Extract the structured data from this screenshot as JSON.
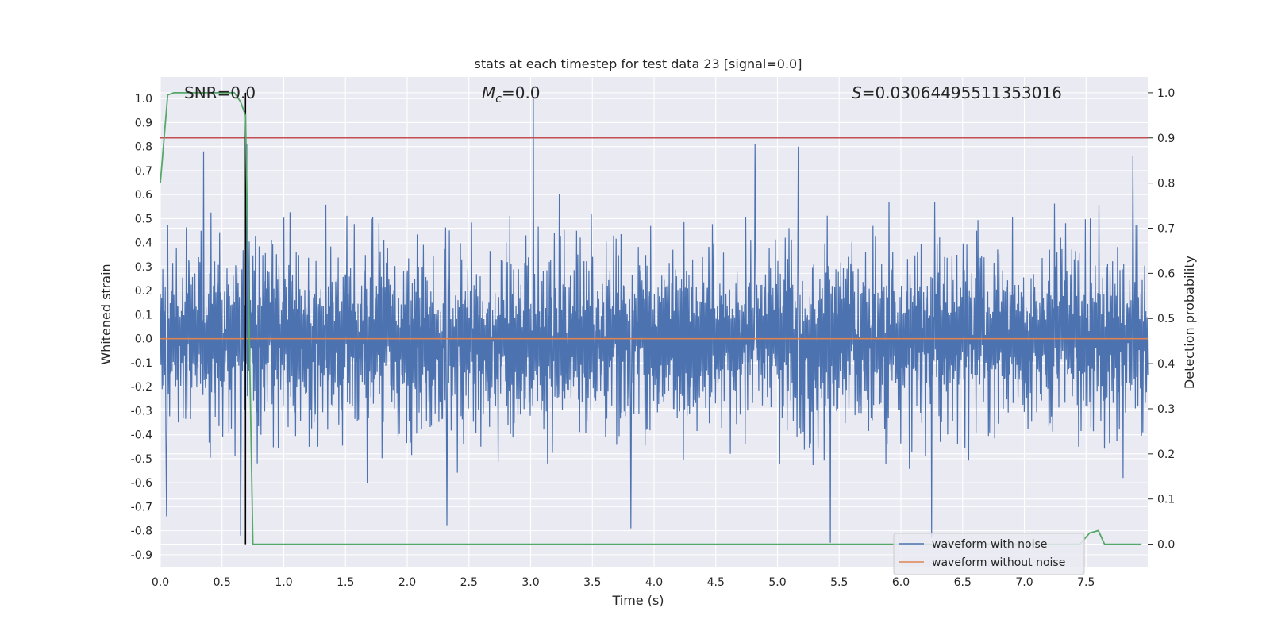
{
  "chart_data": {
    "type": "line",
    "title": "stats at each timestep for test data 23 [signal=0.0]",
    "xlabel": "Time (s)",
    "ylabel": "Whitened strain",
    "y2label": "Detection probability",
    "xlim": [
      0.0,
      8.0
    ],
    "ylim": [
      -0.95,
      1.09
    ],
    "y2lim": [
      -0.05,
      1.035
    ],
    "grid": true,
    "legend_position": "lower right",
    "x_ticks": [
      "0.0",
      "0.5",
      "1.0",
      "1.5",
      "2.0",
      "2.5",
      "3.0",
      "3.5",
      "4.0",
      "4.5",
      "5.0",
      "5.5",
      "6.0",
      "6.5",
      "7.0",
      "7.5"
    ],
    "y_ticks": [
      "1.0",
      "0.9",
      "0.8",
      "0.7",
      "0.6",
      "0.5",
      "0.4",
      "0.3",
      "0.2",
      "0.1",
      "0.0",
      "-0.1",
      "-0.2",
      "-0.3",
      "-0.4",
      "-0.5",
      "-0.6",
      "-0.7",
      "-0.8",
      "-0.9"
    ],
    "y2_ticks": [
      "1.0",
      "0.9",
      "0.8",
      "0.7",
      "0.6",
      "0.5",
      "0.4",
      "0.3",
      "0.2",
      "0.1",
      "0.0"
    ],
    "annotations": {
      "snr": "SNR=0.0",
      "mc_symbol": "M",
      "mc_sub": "c",
      "mc_value": "=0.0",
      "s_symbol": "S",
      "s_value": "=0.03064495511353016"
    },
    "threshold": {
      "value": 0.9,
      "axis": "right",
      "color": "#c44e52"
    },
    "marker_line": {
      "x": 0.69,
      "color": "#000000"
    },
    "series": [
      {
        "name": "waveform with noise",
        "axis": "left",
        "color": "#4c72b0",
        "kind": "noise",
        "notable_peaks": [
          {
            "x": 0.35,
            "y": 0.78
          },
          {
            "x": 0.7,
            "y": 0.81
          },
          {
            "x": 3.02,
            "y": 1.0
          },
          {
            "x": 4.82,
            "y": 0.81
          },
          {
            "x": 5.17,
            "y": 0.8
          },
          {
            "x": 7.88,
            "y": 0.76
          }
        ],
        "notable_troughs": [
          {
            "x": 0.05,
            "y": -0.74
          },
          {
            "x": 0.65,
            "y": -0.82
          },
          {
            "x": 2.32,
            "y": -0.78
          },
          {
            "x": 3.81,
            "y": -0.79
          },
          {
            "x": 5.43,
            "y": -0.85
          },
          {
            "x": 6.25,
            "y": -0.83
          }
        ]
      },
      {
        "name": "waveform without noise",
        "axis": "left",
        "color": "#dd8452",
        "x": [
          0.0,
          8.0
        ],
        "y": [
          0.0,
          0.0
        ]
      },
      {
        "name": "detection probability",
        "axis": "right",
        "color": "#55a868",
        "x": [
          0.0,
          0.06,
          0.11,
          0.3,
          0.6,
          0.65,
          0.69,
          0.75,
          1.0,
          2.0,
          3.0,
          4.0,
          5.0,
          6.0,
          7.0,
          7.45,
          7.53,
          7.6,
          7.65,
          7.7,
          7.95
        ],
        "y": [
          0.8,
          0.995,
          1.0,
          1.0,
          1.0,
          0.98,
          0.95,
          0.0,
          0.0,
          0.0,
          0.0,
          0.0,
          0.0,
          0.0,
          0.0,
          0.0,
          0.025,
          0.03,
          0.0,
          0.0,
          0.0
        ]
      }
    ]
  }
}
